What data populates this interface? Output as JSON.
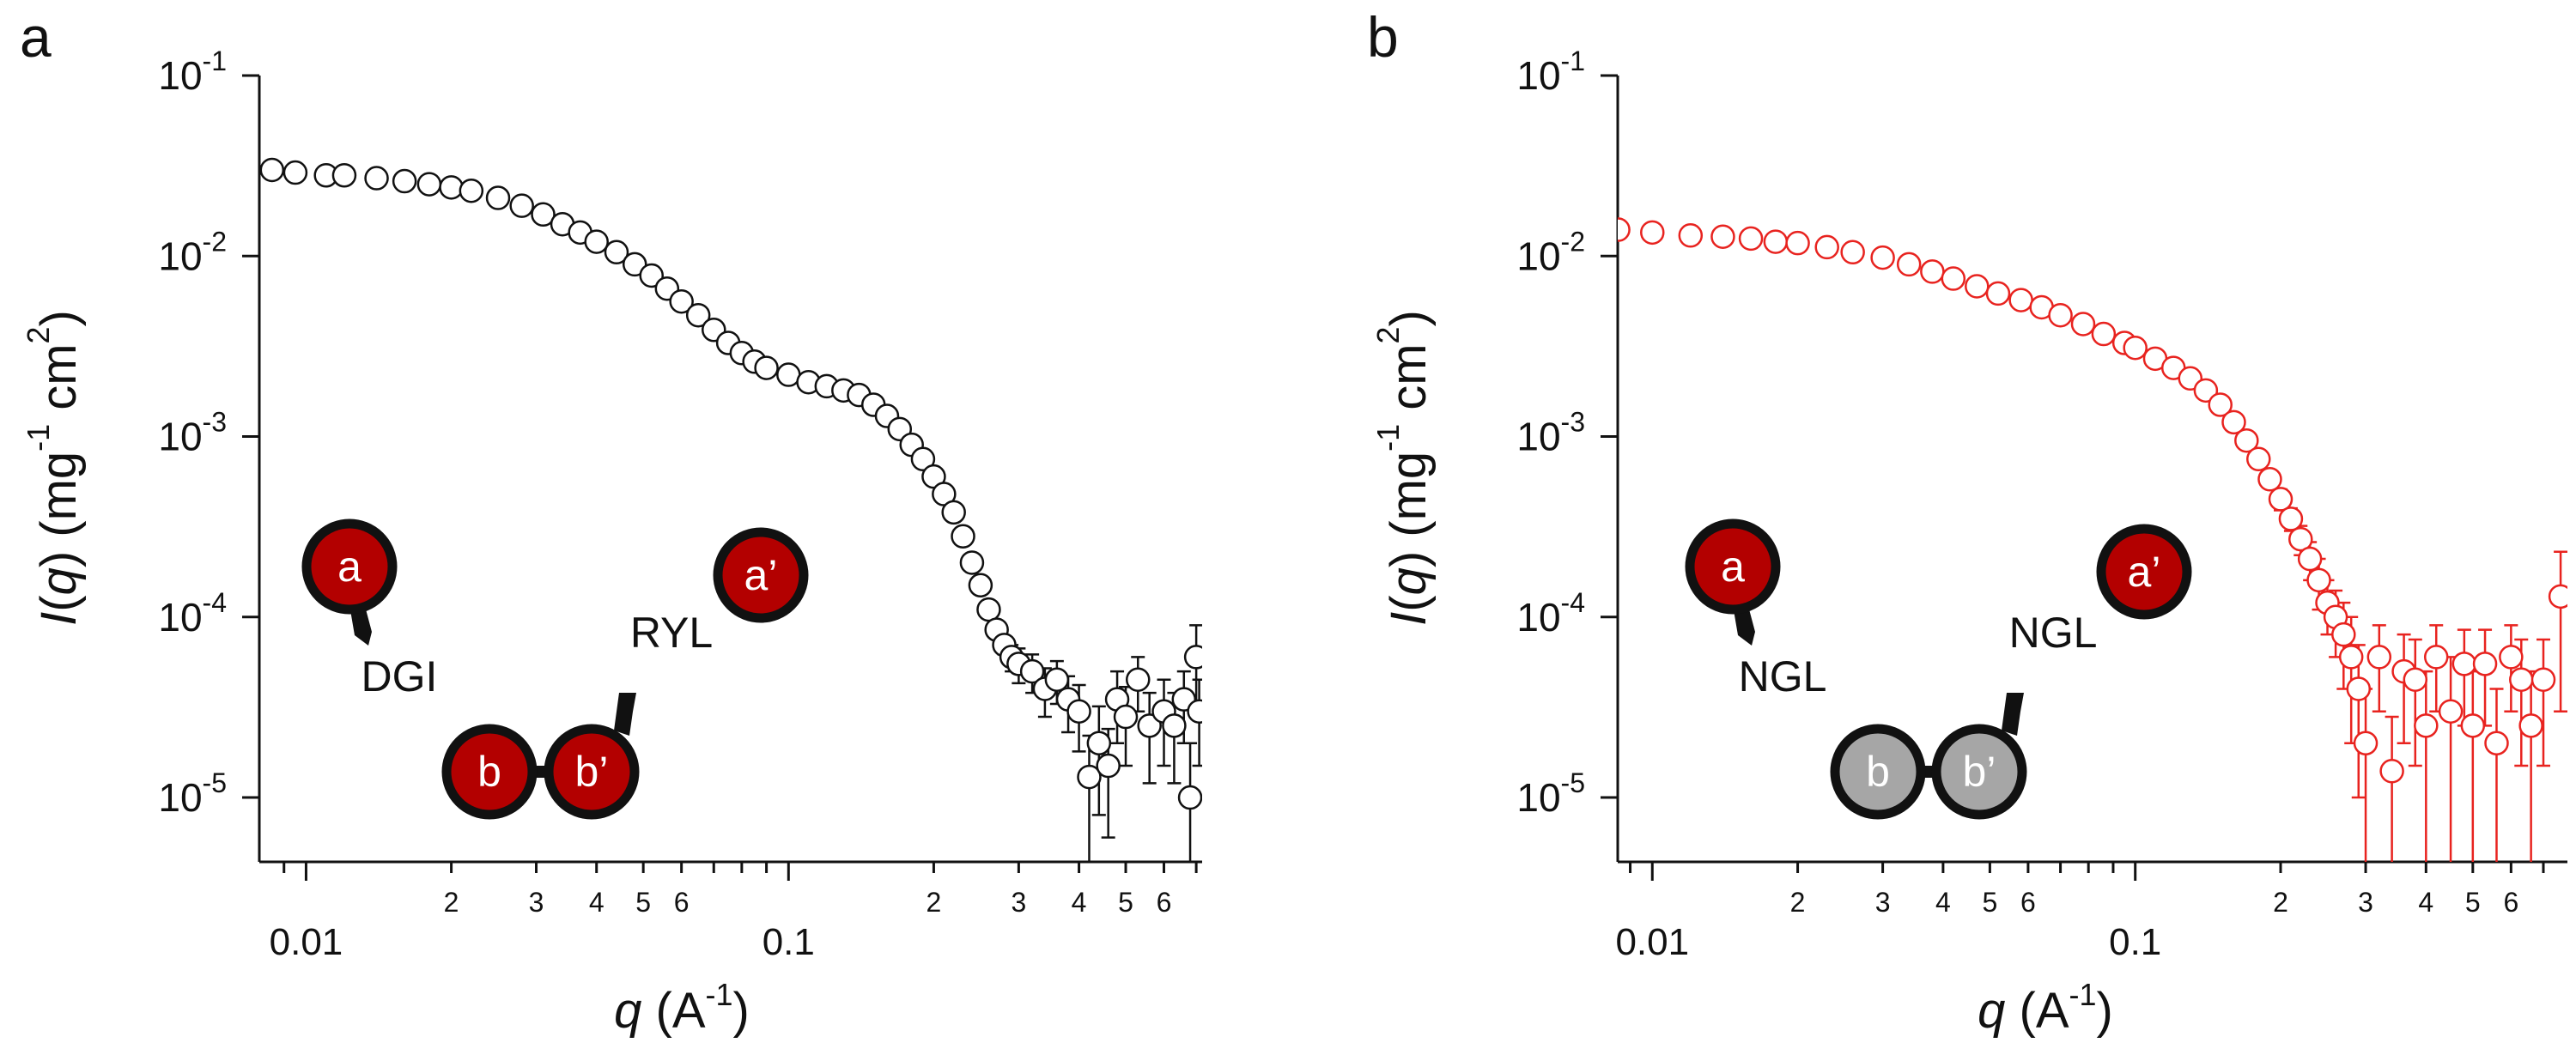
{
  "chart_data": [
    {
      "type": "scatter",
      "panel": "a",
      "ylabel": [
        {
          "text": "I",
          "italic": true
        },
        {
          "text": "("
        },
        {
          "text": "q",
          "italic": true
        },
        {
          "text": ") (mg"
        },
        {
          "text": "-1",
          "sup": true
        },
        {
          "text": " cm"
        },
        {
          "text": "2",
          "sup": true
        },
        {
          "text": ")"
        }
      ],
      "xlabel": [
        {
          "text": "q",
          "italic": true
        },
        {
          "text": " (A"
        },
        {
          "text": "-1",
          "sup": true
        },
        {
          "text": ")"
        }
      ],
      "log_x": true,
      "log_y": true,
      "xlim": [
        0.008,
        0.72
      ],
      "ylim": [
        4.4e-06,
        0.1
      ],
      "xticks": [
        0.01,
        {
          "value": 0.02,
          "label": "2"
        },
        {
          "value": 0.03,
          "label": "3"
        },
        {
          "value": 0.04,
          "label": "4"
        },
        {
          "value": 0.05,
          "label": "5"
        },
        {
          "value": 0.06,
          "label": "6"
        },
        0.1,
        {
          "value": 0.2,
          "label": "2"
        },
        {
          "value": 0.3,
          "label": "3"
        },
        {
          "value": 0.4,
          "label": "4"
        },
        {
          "value": 0.5,
          "label": "5"
        },
        {
          "value": 0.6,
          "label": "6"
        }
      ],
      "xminor_ticks": [
        0.009,
        0.07,
        0.08,
        0.09,
        0.7
      ],
      "yticks": [
        {
          "value": 0.1,
          "label": "10",
          "exponent": "-1"
        },
        {
          "value": 0.01,
          "label": "10",
          "exponent": "-2"
        },
        {
          "value": 0.001,
          "label": "10",
          "exponent": "-3"
        },
        {
          "value": 0.0001,
          "label": "10",
          "exponent": "-4"
        },
        {
          "value": 1e-05,
          "label": "10",
          "exponent": "-5"
        }
      ],
      "x": [
        0.0085,
        0.0095,
        0.011,
        0.012,
        0.014,
        0.016,
        0.018,
        0.02,
        0.022,
        0.025,
        0.028,
        0.031,
        0.034,
        0.037,
        0.04,
        0.044,
        0.048,
        0.052,
        0.056,
        0.06,
        0.065,
        0.07,
        0.075,
        0.08,
        0.085,
        0.09,
        0.1,
        0.11,
        0.12,
        0.13,
        0.14,
        0.15,
        0.16,
        0.17,
        0.18,
        0.19,
        0.2,
        0.21,
        0.22,
        0.23,
        0.24,
        0.25,
        0.26,
        0.27,
        0.28,
        0.29,
        0.3,
        0.32,
        0.34,
        0.36,
        0.38,
        0.4,
        0.42,
        0.44,
        0.46,
        0.48,
        0.5,
        0.53,
        0.56,
        0.6,
        0.63,
        0.66,
        0.68,
        0.7,
        0.71
      ],
      "series": [
        {
          "color": "#111111",
          "values": [
            0.03,
            0.029,
            0.028,
            0.028,
            0.027,
            0.026,
            0.025,
            0.024,
            0.023,
            0.021,
            0.019,
            0.017,
            0.015,
            0.0135,
            0.012,
            0.0105,
            0.009,
            0.0078,
            0.0066,
            0.0056,
            0.0047,
            0.0039,
            0.0033,
            0.0029,
            0.0026,
            0.0024,
            0.0022,
            0.002,
            0.0019,
            0.0018,
            0.0017,
            0.0015,
            0.0013,
            0.0011,
            0.0009,
            0.00075,
            0.0006,
            0.00048,
            0.00038,
            0.00028,
            0.0002,
            0.00015,
            0.00011,
            8.5e-05,
            7e-05,
            6e-05,
            5.5e-05,
            5e-05,
            4e-05,
            4.5e-05,
            3.5e-05,
            3e-05,
            1.3e-05,
            2e-05,
            1.5e-05,
            3.5e-05,
            2.8e-05,
            4.5e-05,
            2.5e-05,
            3e-05,
            2.5e-05,
            3.5e-05,
            1e-05,
            6e-05,
            3e-05
          ],
          "errors": [
            null,
            null,
            null,
            null,
            null,
            null,
            null,
            null,
            null,
            null,
            null,
            null,
            null,
            null,
            null,
            null,
            null,
            null,
            null,
            null,
            null,
            null,
            null,
            null,
            null,
            null,
            null,
            null,
            null,
            null,
            null,
            null,
            null,
            null,
            null,
            null,
            null,
            null,
            null,
            null,
            null,
            1e-05,
            8e-06,
            8e-06,
            8e-06,
            1e-05,
            1.2e-05,
            1.2e-05,
            1.2e-05,
            1.2e-05,
            1.2e-05,
            1.2e-05,
            9e-06,
            1.2e-05,
            9e-06,
            1.5e-05,
            1.3e-05,
            1.5e-05,
            1.3e-05,
            1.5e-05,
            1.3e-05,
            1.5e-05,
            1e-05,
            3e-05,
            1.5e-05
          ]
        }
      ],
      "inset": {
        "domains": [
          {
            "label": "a",
            "color": "#b30000"
          },
          {
            "label": "b",
            "color": "#b30000"
          },
          {
            "label": "b’",
            "color": "#b30000"
          },
          {
            "label": "a’",
            "color": "#b30000"
          }
        ],
        "linkers": [
          "DGI",
          "RYL"
        ]
      }
    },
    {
      "type": "scatter",
      "panel": "b",
      "ylabel": [
        {
          "text": "I",
          "italic": true
        },
        {
          "text": "("
        },
        {
          "text": "q",
          "italic": true
        },
        {
          "text": ") (mg"
        },
        {
          "text": "-1",
          "sup": true
        },
        {
          "text": " cm"
        },
        {
          "text": "2",
          "sup": true
        },
        {
          "text": ")"
        }
      ],
      "xlabel": [
        {
          "text": "q",
          "italic": true
        },
        {
          "text": " (A"
        },
        {
          "text": "-1",
          "sup": true
        },
        {
          "text": ")"
        }
      ],
      "log_x": true,
      "log_y": true,
      "xlim": [
        0.00848,
        0.785
      ],
      "ylim": [
        4.4e-06,
        0.1
      ],
      "xticks": [
        0.01,
        {
          "value": 0.02,
          "label": "2"
        },
        {
          "value": 0.03,
          "label": "3"
        },
        {
          "value": 0.04,
          "label": "4"
        },
        {
          "value": 0.05,
          "label": "5"
        },
        {
          "value": 0.06,
          "label": "6"
        },
        0.1,
        {
          "value": 0.2,
          "label": "2"
        },
        {
          "value": 0.3,
          "label": "3"
        },
        {
          "value": 0.4,
          "label": "4"
        },
        {
          "value": 0.5,
          "label": "5"
        },
        {
          "value": 0.6,
          "label": "6"
        }
      ],
      "xminor_ticks": [
        0.009,
        0.07,
        0.08,
        0.09,
        0.7
      ],
      "yticks": [
        {
          "value": 0.1,
          "label": "10",
          "exponent": "-1"
        },
        {
          "value": 0.01,
          "label": "10",
          "exponent": "-2"
        },
        {
          "value": 0.001,
          "label": "10",
          "exponent": "-3"
        },
        {
          "value": 0.0001,
          "label": "10",
          "exponent": "-4"
        },
        {
          "value": 1e-05,
          "label": "10",
          "exponent": "-5"
        }
      ],
      "x": [
        0.0085,
        0.01,
        0.012,
        0.014,
        0.016,
        0.018,
        0.02,
        0.023,
        0.026,
        0.03,
        0.034,
        0.038,
        0.042,
        0.047,
        0.052,
        0.058,
        0.064,
        0.07,
        0.078,
        0.086,
        0.095,
        0.1,
        0.11,
        0.12,
        0.13,
        0.14,
        0.15,
        0.16,
        0.17,
        0.18,
        0.19,
        0.2,
        0.21,
        0.22,
        0.23,
        0.24,
        0.25,
        0.26,
        0.27,
        0.28,
        0.29,
        0.3,
        0.32,
        0.34,
        0.36,
        0.38,
        0.4,
        0.42,
        0.45,
        0.48,
        0.5,
        0.53,
        0.56,
        0.6,
        0.63,
        0.66,
        0.7,
        0.76
      ],
      "series": [
        {
          "color": "#e8231f",
          "values": [
            0.014,
            0.0135,
            0.013,
            0.0128,
            0.0125,
            0.012,
            0.0118,
            0.0112,
            0.0105,
            0.0098,
            0.009,
            0.0082,
            0.0075,
            0.0068,
            0.0062,
            0.0057,
            0.0052,
            0.0047,
            0.0042,
            0.0037,
            0.0033,
            0.0031,
            0.0027,
            0.0024,
            0.0021,
            0.0018,
            0.0015,
            0.0012,
            0.00095,
            0.00075,
            0.00058,
            0.00045,
            0.00035,
            0.00027,
            0.00021,
            0.00016,
            0.00012,
            0.0001,
            8e-05,
            6e-05,
            4e-05,
            2e-05,
            6e-05,
            1.4e-05,
            5e-05,
            4.5e-05,
            2.5e-05,
            6e-05,
            3e-05,
            5.5e-05,
            2.5e-05,
            5.5e-05,
            2e-05,
            6e-05,
            4.5e-05,
            2.5e-05,
            4.5e-05,
            0.00013
          ],
          "errors": [
            null,
            null,
            null,
            null,
            null,
            null,
            null,
            null,
            null,
            null,
            null,
            null,
            null,
            null,
            null,
            null,
            null,
            null,
            null,
            null,
            null,
            null,
            null,
            null,
            null,
            null,
            null,
            null,
            null,
            8e-05,
            6e-05,
            6e-05,
            5e-05,
            5e-05,
            5e-05,
            5e-05,
            4e-05,
            4e-05,
            4e-05,
            4e-05,
            3e-05,
            2e-05,
            3e-05,
            1.4e-05,
            3e-05,
            3e-05,
            2.5e-05,
            3e-05,
            3e-05,
            3e-05,
            2.5e-05,
            3e-05,
            2e-05,
            3e-05,
            3e-05,
            2.5e-05,
            3e-05,
            0.0001
          ]
        }
      ],
      "inset": {
        "domains": [
          {
            "label": "a",
            "color": "#b30000"
          },
          {
            "label": "b",
            "color": "#a6a6a6"
          },
          {
            "label": "b’",
            "color": "#a6a6a6"
          },
          {
            "label": "a’",
            "color": "#b30000"
          }
        ],
        "linkers": [
          "NGL",
          "NGL"
        ]
      }
    }
  ]
}
